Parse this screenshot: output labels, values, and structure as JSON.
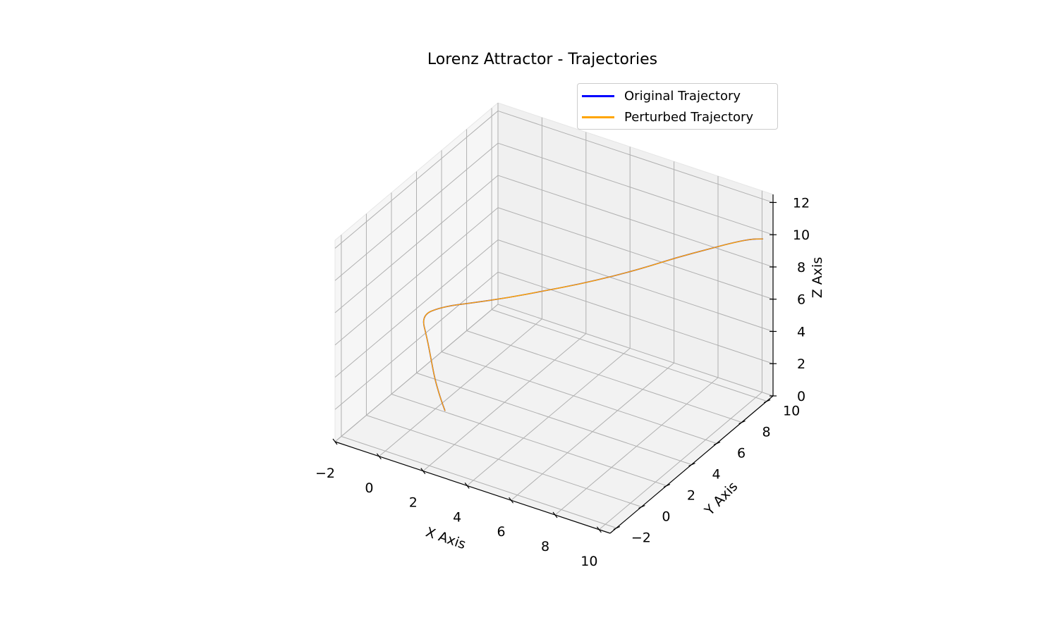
{
  "chart_data": {
    "type": "line3d",
    "title": "Lorenz Attractor - Trajectories",
    "xlabel": "X Axis",
    "ylabel": "Y Axis",
    "zlabel": "Z Axis",
    "xlim": [
      -2,
      10.5
    ],
    "ylim": [
      -2.5,
      10.5
    ],
    "zlim": [
      0,
      12.5
    ],
    "x_ticks": [
      -2,
      0,
      2,
      4,
      6,
      8,
      10
    ],
    "y_ticks": [
      -2,
      0,
      2,
      4,
      6,
      8,
      10
    ],
    "z_ticks": [
      0,
      2,
      4,
      6,
      8,
      10,
      12
    ],
    "x_tick_labels": [
      "−2",
      "0",
      "2",
      "4",
      "6",
      "8",
      "10"
    ],
    "y_tick_labels": [
      "−2",
      "0",
      "2",
      "4",
      "6",
      "8",
      "10"
    ],
    "z_tick_labels": [
      "0",
      "2",
      "4",
      "6",
      "8",
      "10",
      "12"
    ],
    "grid": true,
    "legend": {
      "placement": "top-right"
    },
    "series": [
      {
        "name": "Original Trajectory",
        "color": "#0000ff",
        "points": [
          [
            1.0,
            1.0,
            1.0
          ],
          [
            0.6,
            1.3,
            1.5
          ],
          [
            0.2,
            1.6,
            2.2
          ],
          [
            -0.2,
            2.0,
            3.0
          ],
          [
            -0.6,
            2.4,
            3.8
          ],
          [
            -1.1,
            2.8,
            4.8
          ],
          [
            -0.4,
            3.3,
            5.3
          ],
          [
            0.6,
            3.9,
            5.6
          ],
          [
            1.8,
            4.6,
            6.0
          ],
          [
            3.0,
            5.3,
            6.5
          ],
          [
            4.2,
            6.0,
            7.0
          ],
          [
            5.4,
            6.7,
            7.6
          ],
          [
            6.5,
            7.4,
            8.2
          ],
          [
            7.5,
            8.1,
            8.8
          ],
          [
            8.5,
            8.8,
            9.3
          ],
          [
            9.2,
            9.4,
            9.6
          ],
          [
            9.8,
            9.9,
            9.8
          ],
          [
            10.2,
            10.2,
            9.8
          ]
        ]
      },
      {
        "name": "Perturbed Trajectory",
        "color": "#ffa500",
        "points": [
          [
            1.0,
            1.0,
            1.0
          ],
          [
            0.6,
            1.3,
            1.5
          ],
          [
            0.2,
            1.6,
            2.2
          ],
          [
            -0.2,
            2.0,
            3.0
          ],
          [
            -0.6,
            2.4,
            3.8
          ],
          [
            -1.1,
            2.8,
            4.8
          ],
          [
            -0.4,
            3.3,
            5.3
          ],
          [
            0.6,
            3.9,
            5.6
          ],
          [
            1.8,
            4.6,
            6.0
          ],
          [
            3.0,
            5.3,
            6.5
          ],
          [
            4.2,
            6.0,
            7.0
          ],
          [
            5.4,
            6.7,
            7.6
          ],
          [
            6.5,
            7.4,
            8.2
          ],
          [
            7.5,
            8.1,
            8.8
          ],
          [
            8.5,
            8.8,
            9.3
          ],
          [
            9.2,
            9.4,
            9.6
          ],
          [
            9.8,
            9.9,
            9.8
          ],
          [
            10.2,
            10.2,
            9.8
          ]
        ]
      }
    ]
  }
}
